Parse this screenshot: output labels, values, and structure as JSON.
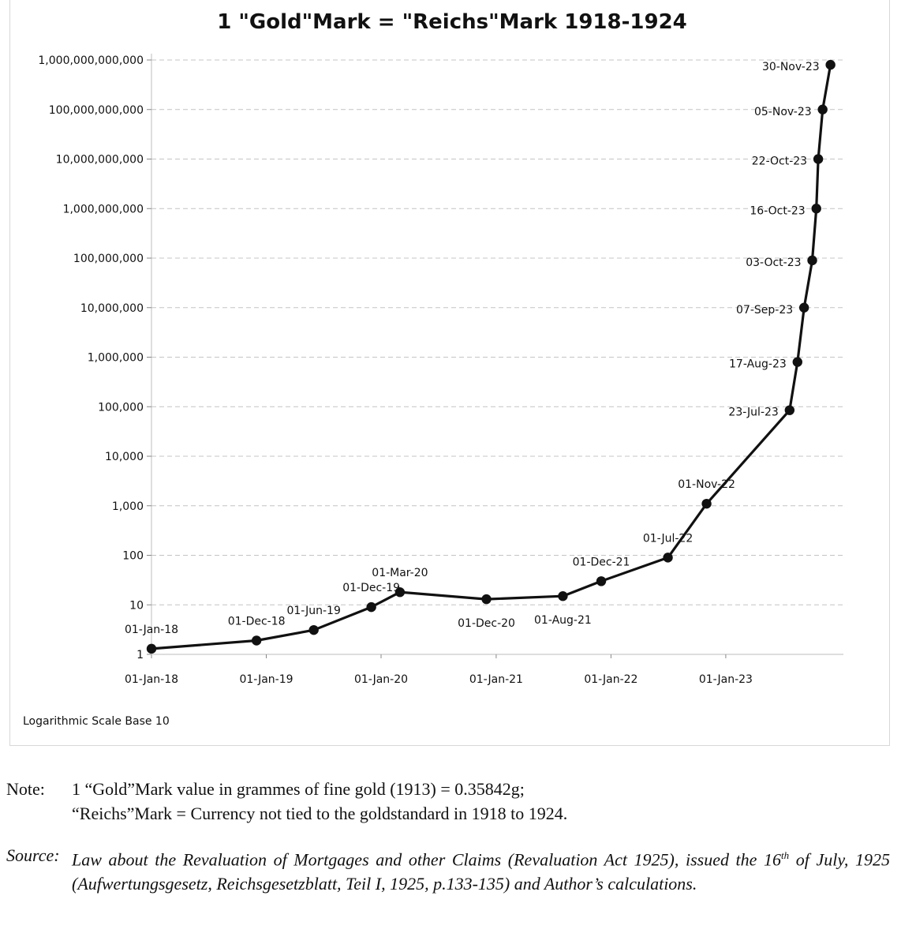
{
  "chart_data": {
    "type": "line",
    "title": "1 \"Gold\"Mark = \"Reichs\"Mark 1918-1924",
    "scale_note": "Logarithmic Scale Base 10",
    "y_scale": "log10",
    "ylim": [
      1,
      1000000000000
    ],
    "y_tick_labels": [
      "1",
      "10",
      "100",
      "1,000",
      "10,000",
      "100,000",
      "1,000,000",
      "10,000,000",
      "100,000,000",
      "1,000,000,000",
      "10,000,000,000",
      "100,000,000,000",
      "1,000,000,000,000"
    ],
    "x_tick_labels": [
      "01-Jan-18",
      "01-Jan-19",
      "01-Jan-20",
      "01-Jan-21",
      "01-Jan-22",
      "01-Jan-23"
    ],
    "xlim": [
      "1918-01-01",
      "1923-12-31"
    ],
    "grid": "horizontal dashed",
    "line_color": "#111111",
    "points": [
      {
        "date": "1918-01-01",
        "value": 1.3,
        "label": "01-Jan-18"
      },
      {
        "date": "1918-12-01",
        "value": 1.9,
        "label": "01-Dec-18"
      },
      {
        "date": "1919-06-01",
        "value": 3.1,
        "label": "01-Jun-19"
      },
      {
        "date": "1919-12-01",
        "value": 9.0,
        "label": "01-Dec-19"
      },
      {
        "date": "1920-03-01",
        "value": 18.0,
        "label": "01-Mar-20"
      },
      {
        "date": "1920-12-01",
        "value": 13.0,
        "label": "01-Dec-20"
      },
      {
        "date": "1921-08-01",
        "value": 15.0,
        "label": "01-Aug-21"
      },
      {
        "date": "1921-12-01",
        "value": 30.0,
        "label": "01-Dec-21"
      },
      {
        "date": "1922-07-01",
        "value": 90.0,
        "label": "01-Jul-22"
      },
      {
        "date": "1922-11-01",
        "value": 1100.0,
        "label": "01-Nov-22"
      },
      {
        "date": "1923-07-23",
        "value": 85000.0,
        "label": "23-Jul-23"
      },
      {
        "date": "1923-08-17",
        "value": 800000.0,
        "label": "17-Aug-23"
      },
      {
        "date": "1923-09-07",
        "value": 10000000.0,
        "label": "07-Sep-23"
      },
      {
        "date": "1923-10-03",
        "value": 90000000.0,
        "label": "03-Oct-23"
      },
      {
        "date": "1923-10-16",
        "value": 1000000000.0,
        "label": "16-Oct-23"
      },
      {
        "date": "1923-10-22",
        "value": 10000000000.0,
        "label": "22-Oct-23"
      },
      {
        "date": "1923-11-05",
        "value": 100000000000.0,
        "label": "05-Nov-23"
      },
      {
        "date": "1923-11-30",
        "value": 800000000000.0,
        "label": "30-Nov-23"
      }
    ]
  },
  "notes": {
    "note_head": "Note:",
    "note_line1": "1 “Gold”Mark value in grammes of fine gold (1913) = 0.35842g;",
    "note_line2": "“Reichs”Mark = Currency not tied to the goldstandard in 1918 to 1924.",
    "source_head": "Source:",
    "source_pre": "Law about the Revaluation of Mortgages and other Claims (Revaluation Act 1925), issued the 16",
    "source_sup": "th",
    "source_post": " of July, 1925 (Aufwertungsgesetz, Reichsgesetzblatt, Teil I, 1925, p.133-135) and Author’s calculations."
  }
}
